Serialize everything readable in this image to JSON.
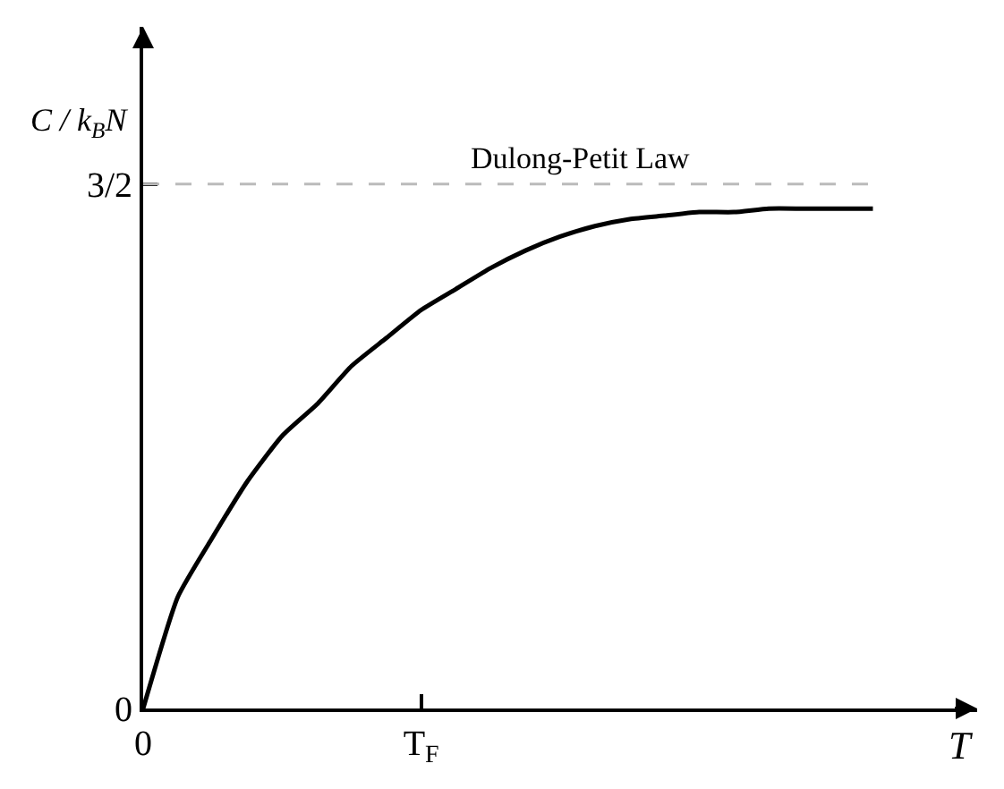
{
  "chart_data": {
    "type": "line",
    "categories": [
      "0",
      null,
      null,
      null,
      null,
      null,
      null,
      null,
      "T$_{F}$",
      null,
      null,
      null,
      null,
      null,
      null,
      null,
      null,
      null,
      null,
      null,
      null,
      null
    ],
    "values": [
      0,
      0.32,
      0.49,
      0.65,
      0.78,
      0.87,
      0.98,
      1.06,
      1.14,
      1.2,
      1.26,
      1.31,
      1.35,
      1.38,
      1.4,
      1.41,
      1.42,
      1.42,
      1.43,
      1.43,
      1.43,
      1.43
    ],
    "color": "#000000",
    "line_style": "solid",
    "marker": "none",
    "xlabel": "T",
    "ylabel": "C / k$_{B}$N",
    "ylim": [
      0,
      1.95
    ],
    "yticks": [
      0,
      {
        "value": 1.5,
        "label": "3/2"
      }
    ],
    "ref_lines": [
      {
        "axis": "y",
        "value": 1.5,
        "label": "Dulong-Petit Law",
        "color": "#bbbbbb",
        "line_style": "dashed"
      }
    ]
  }
}
